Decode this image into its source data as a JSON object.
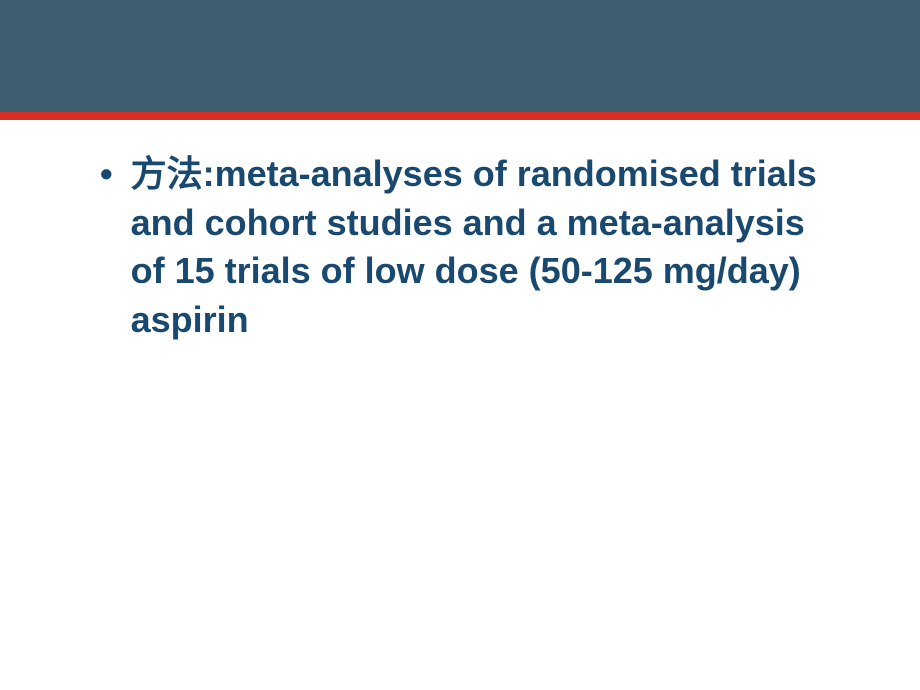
{
  "slide": {
    "header_bg_color": "#3f5e6f",
    "stripe_color": "#d92e27",
    "background_color": "#ffffff",
    "text_color": "#19496f",
    "font_size": 36,
    "font_weight": "bold",
    "bullet_char": "•",
    "bullet_text": "方法:meta-analyses of randomised trials and cohort studies and a meta-analysis of 15 trials of low dose (50-125 mg/day) aspirin"
  }
}
